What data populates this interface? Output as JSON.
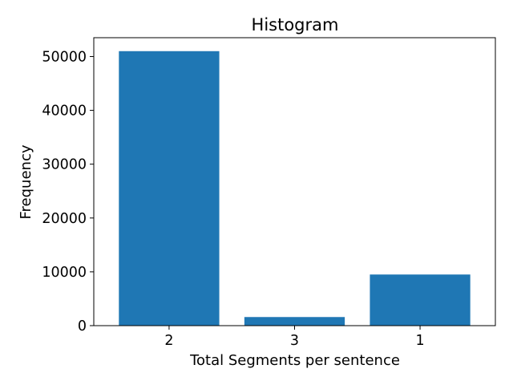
{
  "chart_data": {
    "type": "bar",
    "title": "Histogram",
    "xlabel": "Total Segments per sentence",
    "ylabel": "Frequency",
    "categories": [
      "2",
      "3",
      "1"
    ],
    "values": [
      51000,
      1600,
      9500
    ],
    "ylim": [
      0,
      53500
    ],
    "yticks": [
      0,
      10000,
      20000,
      30000,
      40000,
      50000
    ],
    "bar_color": "#1f77b4",
    "grid": false,
    "legend": "none"
  }
}
